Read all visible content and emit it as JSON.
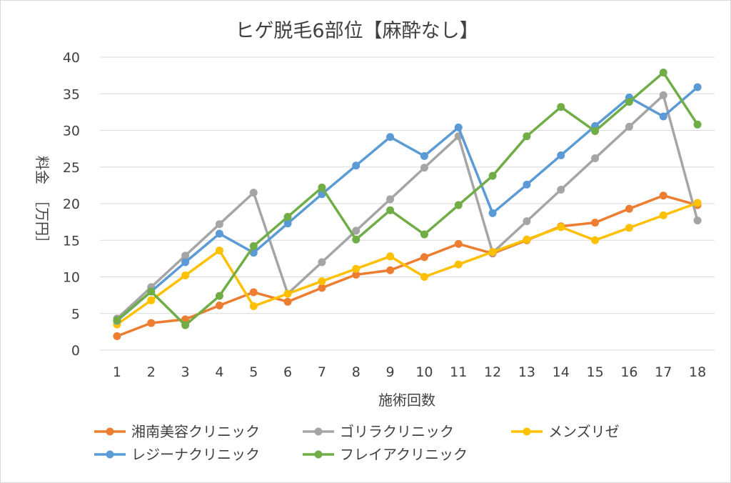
{
  "chart_data": {
    "type": "line",
    "title": "ヒゲ脱毛6部位【麻酔なし】",
    "xlabel": "施術回数",
    "ylabel_lines": [
      "料金",
      "［万円］"
    ],
    "ylim": [
      0,
      40
    ],
    "ytick_step": 5,
    "categories": [
      "1",
      "2",
      "3",
      "4",
      "5",
      "6",
      "7",
      "8",
      "9",
      "10",
      "11",
      "12",
      "13",
      "14",
      "15",
      "16",
      "17",
      "18"
    ],
    "series": [
      {
        "name": "湘南美容クリニック",
        "color": "#ed7d31",
        "values": [
          1.9,
          3.7,
          4.2,
          6.1,
          7.9,
          6.6,
          8.5,
          10.3,
          10.9,
          12.7,
          14.5,
          13.2,
          15.0,
          16.9,
          17.4,
          19.3,
          21.1,
          19.8
        ]
      },
      {
        "name": "ゴリラクリニック",
        "color": "#a5a5a5",
        "values": [
          4.3,
          8.6,
          12.9,
          17.2,
          21.5,
          7.7,
          12.0,
          16.3,
          20.6,
          24.9,
          29.2,
          13.3,
          17.6,
          21.9,
          26.2,
          30.5,
          34.8,
          17.7
        ]
      },
      {
        "name": "メンズリゼ",
        "color": "#ffc000",
        "values": [
          3.5,
          6.8,
          10.2,
          13.6,
          6.0,
          7.7,
          9.4,
          11.1,
          12.8,
          10.0,
          11.7,
          13.4,
          15.1,
          16.8,
          15.0,
          16.7,
          18.4,
          20.1
        ]
      },
      {
        "name": "レジーナクリニック",
        "color": "#5b9bd5",
        "values": [
          4.0,
          8.0,
          12.0,
          15.9,
          13.3,
          17.3,
          21.3,
          25.2,
          29.1,
          26.5,
          30.4,
          18.7,
          22.6,
          26.6,
          30.6,
          34.5,
          31.9,
          35.9
        ]
      },
      {
        "name": "フレイアクリニック",
        "color": "#70ad47",
        "values": [
          4.1,
          8.0,
          3.4,
          7.4,
          14.2,
          18.2,
          22.2,
          15.1,
          19.1,
          15.8,
          19.8,
          23.8,
          29.2,
          33.2,
          29.9,
          33.9,
          37.9,
          30.8
        ]
      }
    ],
    "legend_position": "bottom"
  }
}
